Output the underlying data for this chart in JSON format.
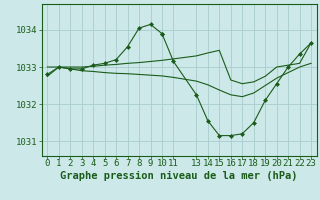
{
  "background_color": "#cce8e8",
  "line_color": "#1a5c1a",
  "grid_color": "#aacccc",
  "xlabel": "Graphe pression niveau de la mer (hPa)",
  "xlabel_fontsize": 7.5,
  "tick_fontsize": 6.5,
  "ylim": [
    1030.6,
    1034.7
  ],
  "yticks": [
    1031,
    1032,
    1033,
    1034
  ],
  "xticks": [
    0,
    1,
    2,
    3,
    4,
    5,
    6,
    7,
    8,
    9,
    10,
    11,
    13,
    14,
    15,
    16,
    17,
    18,
    19,
    20,
    21,
    22,
    23
  ],
  "lines": [
    {
      "x": [
        0,
        1,
        2,
        3,
        4,
        5,
        6,
        7,
        8,
        9,
        10
      ],
      "y": [
        1032.8,
        1033.0,
        1032.95,
        1032.95,
        1033.05,
        1033.1,
        1033.2,
        1033.55,
        1034.05,
        1034.15,
        1033.9
      ],
      "marker": true
    },
    {
      "x": [
        10,
        11,
        13,
        14,
        15,
        16,
        17,
        18,
        19,
        20,
        21,
        22,
        23
      ],
      "y": [
        1033.9,
        1033.15,
        1032.25,
        1031.55,
        1031.15,
        1031.15,
        1031.2,
        1031.5,
        1032.1,
        1032.55,
        1033.0,
        1033.35,
        1033.65
      ],
      "marker": true
    },
    {
      "x": [
        0,
        1,
        2,
        3,
        4,
        5,
        6,
        7,
        8,
        9,
        10,
        11,
        13,
        14,
        15,
        16,
        17,
        18,
        19,
        20,
        21,
        22,
        23
      ],
      "y": [
        1033.0,
        1033.0,
        1033.0,
        1033.0,
        1033.02,
        1033.05,
        1033.07,
        1033.1,
        1033.12,
        1033.15,
        1033.18,
        1033.22,
        1033.3,
        1033.38,
        1033.45,
        1032.65,
        1032.55,
        1032.6,
        1032.75,
        1033.0,
        1033.05,
        1033.1,
        1033.65
      ],
      "marker": false
    },
    {
      "x": [
        0,
        1,
        2,
        3,
        4,
        5,
        6,
        7,
        8,
        9,
        10,
        11,
        13,
        14,
        15,
        16,
        17,
        18,
        19,
        20,
        21,
        22,
        23
      ],
      "y": [
        1032.75,
        1033.0,
        1032.95,
        1032.9,
        1032.88,
        1032.85,
        1032.83,
        1032.82,
        1032.8,
        1032.78,
        1032.76,
        1032.72,
        1032.62,
        1032.52,
        1032.38,
        1032.25,
        1032.2,
        1032.3,
        1032.5,
        1032.7,
        1032.85,
        1033.0,
        1033.1
      ],
      "marker": false
    }
  ]
}
